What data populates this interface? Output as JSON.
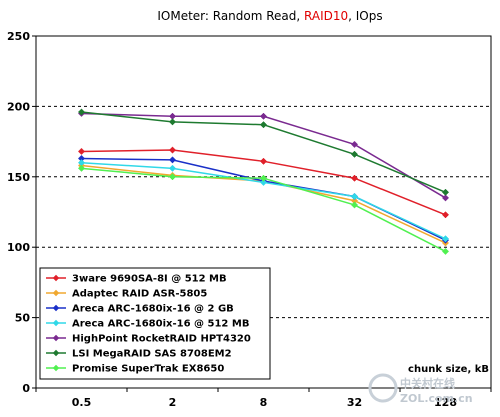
{
  "chart_data": {
    "type": "line",
    "title_parts": [
      {
        "text": "IOMeter: Random Read, ",
        "color": "#000000"
      },
      {
        "text": "RAID10",
        "color": "#e00000"
      },
      {
        "text": ", IOps",
        "color": "#000000"
      }
    ],
    "xlabel": "chunk size, kB",
    "ylabel": "",
    "categories": [
      "0.5",
      "2",
      "8",
      "32",
      "128"
    ],
    "ylim": [
      0,
      250
    ],
    "yticks": [
      0,
      50,
      100,
      150,
      200,
      250
    ],
    "ytick_labels": [
      "0",
      "50",
      "100",
      "150",
      "200",
      "250"
    ],
    "grid": "horizontal-dashed",
    "legend_position": "bottom-left",
    "series": [
      {
        "name": "3ware 9690SA-8I @ 512 MB",
        "color": "#e0202a",
        "values": [
          168,
          169,
          161,
          149,
          123
        ]
      },
      {
        "name": "Adaptec RAID ASR-5805",
        "color": "#f0a830",
        "values": [
          158,
          151,
          147,
          133,
          103
        ]
      },
      {
        "name": "Areca ARC-1680ix-16 @ 2 GB",
        "color": "#1a30c8",
        "values": [
          163,
          162,
          147,
          136,
          105
        ]
      },
      {
        "name": "Areca ARC-1680ix-16 @ 512 MB",
        "color": "#30d8e8",
        "values": [
          160,
          156,
          146,
          136,
          106
        ]
      },
      {
        "name": "HighPoint RocketRAID HPT4320",
        "color": "#7a2a90",
        "values": [
          195,
          193,
          193,
          173,
          135
        ]
      },
      {
        "name": "LSI MegaRAID SAS 8708EM2",
        "color": "#1e7a30",
        "values": [
          196,
          189,
          187,
          166,
          139
        ]
      },
      {
        "name": "Promise SuperTrak EX8650",
        "color": "#50f050",
        "values": [
          156,
          150,
          149,
          130,
          97
        ]
      }
    ]
  },
  "watermark": {
    "line1": "中关村在线",
    "line2": "ZOL.com.cn"
  }
}
